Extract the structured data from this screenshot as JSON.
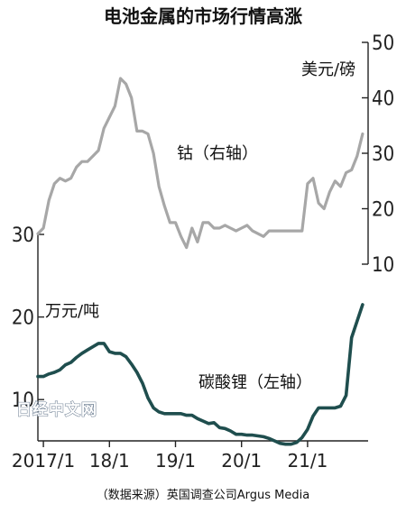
{
  "title": "电池金属的市场行情高涨",
  "source": "（数据来源）英国调查公司Argus Media",
  "watermark": "日经中文网",
  "chart_data": {
    "type": "line",
    "x_tick_labels": [
      "2017/1",
      "18/1",
      "19/1",
      "20/1",
      "21/1"
    ],
    "x_ticks": [
      "2017-01",
      "2018-01",
      "2019-01",
      "2020-01",
      "2021-01"
    ],
    "x_range": [
      "2016-12",
      "2021-12"
    ],
    "left_axis": {
      "unit": "万元/吨",
      "ticks": [
        10,
        20,
        30
      ],
      "ylim": [
        5,
        30
      ]
    },
    "right_axis": {
      "unit": "美元/磅",
      "ticks": [
        10,
        20,
        30,
        40,
        50
      ],
      "ylim": [
        10,
        50
      ]
    },
    "series": [
      {
        "name": "钴（右轴）",
        "axis": "right",
        "color": "#a7a7a7",
        "x": [
          "2016-12",
          "2017-01",
          "2017-02",
          "2017-03",
          "2017-04",
          "2017-05",
          "2017-06",
          "2017-07",
          "2017-08",
          "2017-09",
          "2017-10",
          "2017-11",
          "2017-12",
          "2018-01",
          "2018-02",
          "2018-03",
          "2018-04",
          "2018-05",
          "2018-06",
          "2018-07",
          "2018-08",
          "2018-09",
          "2018-10",
          "2018-11",
          "2018-12",
          "2019-01",
          "2019-02",
          "2019-03",
          "2019-04",
          "2019-05",
          "2019-06",
          "2019-07",
          "2019-08",
          "2019-09",
          "2019-10",
          "2019-11",
          "2019-12",
          "2020-01",
          "2020-02",
          "2020-03",
          "2020-04",
          "2020-05",
          "2020-06",
          "2020-07",
          "2020-08",
          "2020-09",
          "2020-10",
          "2020-11",
          "2020-12",
          "2021-01",
          "2021-02",
          "2021-03",
          "2021-04",
          "2021-05",
          "2021-06",
          "2021-07",
          "2021-08",
          "2021-09",
          "2021-10",
          "2021-11"
        ],
        "values": [
          15.5,
          16.5,
          21.5,
          24.5,
          25.5,
          25.0,
          25.5,
          27.5,
          28.5,
          28.5,
          29.5,
          30.5,
          34.5,
          36.5,
          38.5,
          43.5,
          42.5,
          40.0,
          34.0,
          34.0,
          33.5,
          30.0,
          24.0,
          20.5,
          17.5,
          17.5,
          15.0,
          13.0,
          16.5,
          14.0,
          17.5,
          17.5,
          16.5,
          16.5,
          17.0,
          16.5,
          16.0,
          16.5,
          17.0,
          16.0,
          15.5,
          15.0,
          16.0,
          16.0,
          16.0,
          16.0,
          16.0,
          16.0,
          16.0,
          24.5,
          25.5,
          21.0,
          20.0,
          23.0,
          25.0,
          24.0,
          26.5,
          27.0,
          29.5,
          33.5
        ]
      },
      {
        "name": "碳酸锂（左轴）",
        "axis": "left",
        "color": "#1f4e4e",
        "x": [
          "2016-12",
          "2017-01",
          "2017-02",
          "2017-03",
          "2017-04",
          "2017-05",
          "2017-06",
          "2017-07",
          "2017-08",
          "2017-09",
          "2017-10",
          "2017-11",
          "2017-12",
          "2018-01",
          "2018-02",
          "2018-03",
          "2018-04",
          "2018-05",
          "2018-06",
          "2018-07",
          "2018-08",
          "2018-09",
          "2018-10",
          "2018-11",
          "2018-12",
          "2019-01",
          "2019-02",
          "2019-03",
          "2019-04",
          "2019-05",
          "2019-06",
          "2019-07",
          "2019-08",
          "2019-09",
          "2019-10",
          "2019-11",
          "2019-12",
          "2020-01",
          "2020-02",
          "2020-03",
          "2020-04",
          "2020-05",
          "2020-06",
          "2020-07",
          "2020-08",
          "2020-09",
          "2020-10",
          "2020-11",
          "2020-12",
          "2021-01",
          "2021-02",
          "2021-03",
          "2021-04",
          "2021-05",
          "2021-06",
          "2021-07",
          "2021-08",
          "2021-09",
          "2021-10",
          "2021-11"
        ],
        "values": [
          12.8,
          12.8,
          13.1,
          13.3,
          13.6,
          14.2,
          14.5,
          15.1,
          15.6,
          16.0,
          16.4,
          16.8,
          16.8,
          15.8,
          15.6,
          15.6,
          15.2,
          14.3,
          13.3,
          12.0,
          10.2,
          9.0,
          8.5,
          8.3,
          8.3,
          8.3,
          8.3,
          8.1,
          8.1,
          7.7,
          7.4,
          7.1,
          7.2,
          6.6,
          6.5,
          6.2,
          5.8,
          5.8,
          5.7,
          5.7,
          5.6,
          5.5,
          5.3,
          5.0,
          4.7,
          4.6,
          4.6,
          4.8,
          5.4,
          6.4,
          8.0,
          9.0,
          9.0,
          9.0,
          9.0,
          9.2,
          10.5,
          17.5,
          19.5,
          21.5
        ]
      }
    ]
  }
}
